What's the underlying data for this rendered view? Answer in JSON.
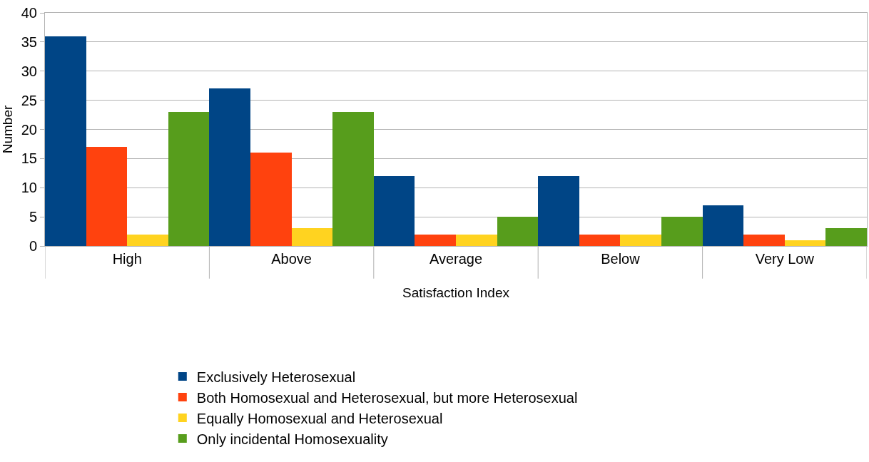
{
  "chart_data": {
    "type": "bar",
    "xlabel": "Satisfaction Index",
    "ylabel": "Number",
    "categories": [
      "High",
      "Above",
      "Average",
      "Below",
      "Very Low"
    ],
    "series": [
      {
        "name": "Exclusively Heterosexual",
        "color": "#004586",
        "values": [
          36,
          27,
          12,
          12,
          7
        ]
      },
      {
        "name": "Both Homosexual and Heterosexual, but more Heterosexual",
        "color": "#ff420e",
        "values": [
          17,
          16,
          2,
          2,
          2
        ]
      },
      {
        "name": "Equally Homosexual and Heterosexual",
        "color": "#ffd320",
        "values": [
          2,
          3,
          2,
          2,
          1
        ]
      },
      {
        "name": "Only incidental Homosexuality",
        "color": "#579d1c",
        "values": [
          23,
          23,
          5,
          5,
          3
        ]
      }
    ],
    "ylim": [
      0,
      40
    ],
    "yticks": [
      0,
      5,
      10,
      15,
      20,
      25,
      30,
      35,
      40
    ],
    "grid": "y",
    "legend": "bottom"
  }
}
